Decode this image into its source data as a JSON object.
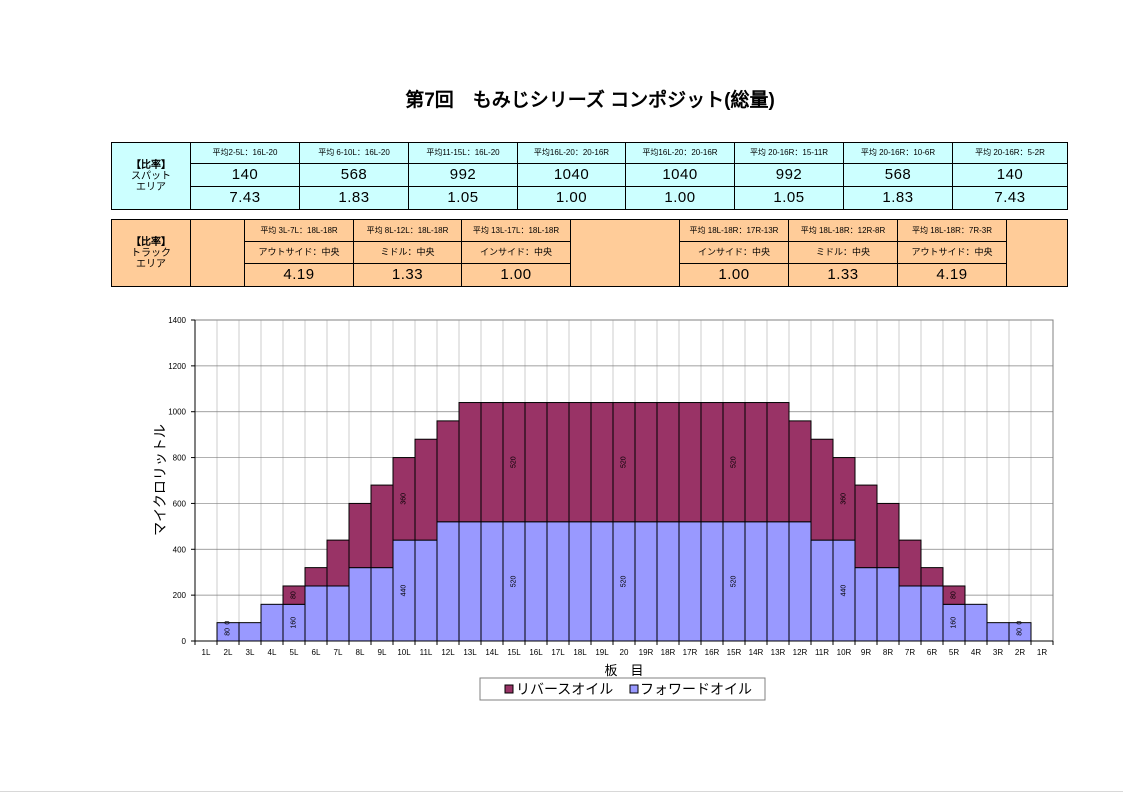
{
  "title": "第7回　もみじシリーズ コンポジット(総量)",
  "spot_table": {
    "label": [
      "【比率】",
      "スパット",
      "エリア"
    ],
    "headers": [
      "平均2-5L：16L-20",
      "平均 6-10L：16L-20",
      "平均11-15L：16L-20",
      "平均16L-20：20-16R",
      "平均16L-20：20-16R",
      "平均 20-16R：15-11R",
      "平均 20-16R：10-6R",
      "平均 20-16R：5-2R"
    ],
    "averages": [
      "140",
      "568",
      "992",
      "1040",
      "1040",
      "992",
      "568",
      "140"
    ],
    "ratios": [
      "7.43",
      "1.83",
      "1.05",
      "1.00",
      "1.00",
      "1.05",
      "1.83",
      "7.43"
    ]
  },
  "track_table": {
    "label": [
      "【比率】",
      "トラック",
      "エリア"
    ],
    "left": {
      "headers": [
        "平均 3L-7L：18L-18R",
        "平均 8L-12L：18L-18R",
        "平均 13L-17L：18L-18R"
      ],
      "positions": [
        "アウトサイド：中央",
        "ミドル：中央",
        "インサイド：中央"
      ],
      "ratios": [
        "4.19",
        "1.33",
        "1.00"
      ]
    },
    "right": {
      "headers": [
        "平均 18L-18R：17R-13R",
        "平均 18L-18R：12R-8R",
        "平均 18L-18R：7R-3R"
      ],
      "positions": [
        "インサイド：中央",
        "ミドル：中央",
        "アウトサイド：中央"
      ],
      "ratios": [
        "1.00",
        "1.33",
        "4.19"
      ]
    }
  },
  "colors": {
    "forward_oil": "#9999ff",
    "reverse_oil": "#993366",
    "spot_table_bg": "#ccffff",
    "track_table_bg": "#ffcc99"
  },
  "chart_data": {
    "type": "bar",
    "stacked": true,
    "categories": [
      "1L",
      "2L",
      "3L",
      "4L",
      "5L",
      "6L",
      "7L",
      "8L",
      "9L",
      "10L",
      "11L",
      "12L",
      "13L",
      "14L",
      "15L",
      "16L",
      "17L",
      "18L",
      "19L",
      "20",
      "19R",
      "18R",
      "17R",
      "16R",
      "15R",
      "14R",
      "13R",
      "12R",
      "11R",
      "10R",
      "9R",
      "8R",
      "7R",
      "6R",
      "5R",
      "4R",
      "3R",
      "2R",
      "1R"
    ],
    "series": [
      {
        "name": "フォワードオイル",
        "values": [
          0,
          80,
          80,
          160,
          160,
          240,
          240,
          320,
          320,
          440,
          440,
          520,
          520,
          520,
          520,
          520,
          520,
          520,
          520,
          520,
          520,
          520,
          520,
          520,
          520,
          520,
          520,
          520,
          440,
          440,
          320,
          320,
          240,
          240,
          160,
          160,
          80,
          80,
          0
        ],
        "labels": [
          null,
          80,
          null,
          null,
          160,
          null,
          null,
          null,
          null,
          440,
          null,
          null,
          null,
          null,
          520,
          null,
          null,
          null,
          null,
          520,
          null,
          null,
          null,
          null,
          520,
          null,
          null,
          null,
          null,
          440,
          null,
          null,
          null,
          null,
          160,
          null,
          null,
          80,
          null
        ]
      },
      {
        "name": "リバースオイル",
        "values": [
          0,
          0,
          0,
          0,
          80,
          80,
          200,
          280,
          360,
          360,
          440,
          440,
          520,
          520,
          520,
          520,
          520,
          520,
          520,
          520,
          520,
          520,
          520,
          520,
          520,
          520,
          520,
          440,
          440,
          360,
          360,
          280,
          200,
          80,
          80,
          0,
          0,
          0,
          0
        ],
        "labels": [
          null,
          0,
          null,
          null,
          80,
          null,
          null,
          null,
          null,
          360,
          null,
          null,
          null,
          null,
          520,
          null,
          null,
          null,
          null,
          520,
          null,
          null,
          null,
          null,
          520,
          null,
          null,
          null,
          null,
          360,
          null,
          null,
          null,
          null,
          80,
          null,
          null,
          0,
          null
        ]
      }
    ],
    "xlabel": "板　目",
    "ylabel": "マイクロリットル",
    "ylim": [
      0,
      1400
    ],
    "yticks": [
      0,
      200,
      400,
      600,
      800,
      1000,
      1200,
      1400
    ],
    "grid": true,
    "legend": "bottom"
  }
}
